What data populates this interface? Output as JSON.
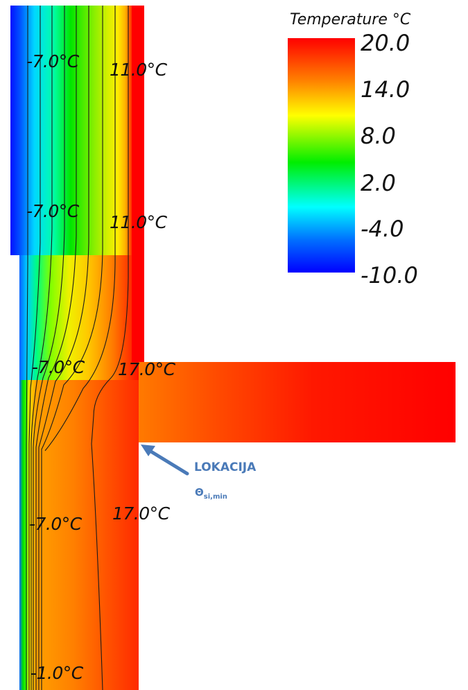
{
  "legend": {
    "title": "Temperature °C",
    "ticks": [
      "20.0",
      "14.0",
      "8.0",
      "2.0",
      "-4.0",
      "-10.0"
    ]
  },
  "isotherm_labels": [
    "-7.0°C",
    "11.0°C",
    "-7.0°C",
    "11.0°C",
    "-7.0°C",
    "17.0°C",
    "-7.0°C",
    "17.0°C",
    "-1.0°C"
  ],
  "annotation": {
    "label": "LOKACIJA",
    "symbol": "Θ",
    "subscript": "si,min"
  },
  "colors": {
    "cold": "#0000ff",
    "warm": "#ff0000",
    "annotation": "#4a7ab8"
  }
}
